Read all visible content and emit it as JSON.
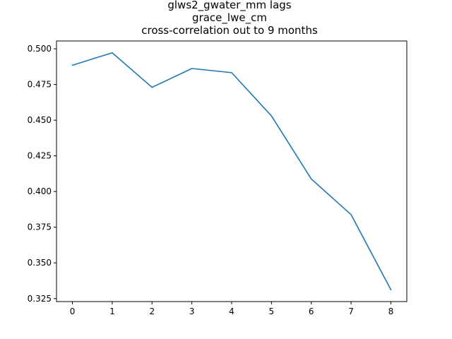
{
  "chart_data": {
    "type": "line",
    "title_lines": [
      "glws2_gwater_mm lags",
      "grace_lwe_cm",
      "cross-correlation out to 9 months"
    ],
    "xlabel": "",
    "ylabel": "",
    "x": [
      0,
      1,
      2,
      3,
      4,
      5,
      6,
      7,
      8
    ],
    "series": [
      {
        "values": [
          0.4885,
          0.4972,
          0.473,
          0.4862,
          0.4833,
          0.453,
          0.4088,
          0.3838,
          0.3312
        ]
      }
    ],
    "x_ticks": [
      0,
      1,
      2,
      3,
      4,
      5,
      6,
      7,
      8
    ],
    "x_tick_labels": [
      "0",
      "1",
      "2",
      "3",
      "4",
      "5",
      "6",
      "7",
      "8"
    ],
    "y_ticks": [
      0.325,
      0.35,
      0.375,
      0.4,
      0.425,
      0.45,
      0.475,
      0.5
    ],
    "y_tick_labels": [
      "0.325",
      "0.350",
      "0.375",
      "0.400",
      "0.425",
      "0.450",
      "0.475",
      "0.500"
    ],
    "xlim": [
      -0.4,
      8.4
    ],
    "ylim": [
      0.3229,
      0.5055
    ],
    "grid": false,
    "legend": "none",
    "line_color": "#1f77b4"
  }
}
